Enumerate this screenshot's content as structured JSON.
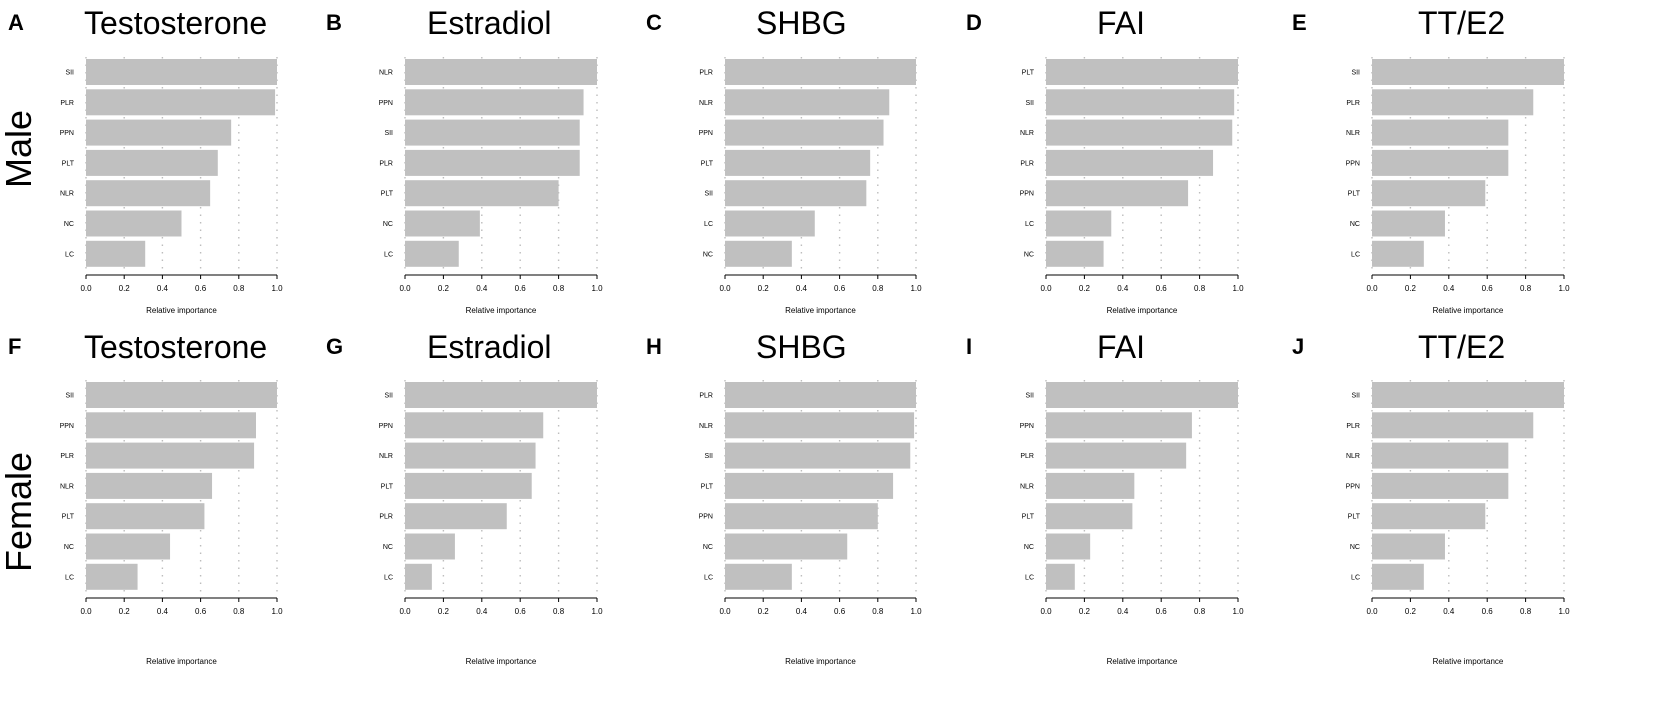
{
  "figure": {
    "row_labels": [
      "Male",
      "Female"
    ],
    "bar_color": "#c0c0c0",
    "grid_color": "#bdbdbd",
    "axis_color": "#000000"
  },
  "chart_data": [
    {
      "type": "bar",
      "orientation": "horizontal",
      "panel_letter": "A",
      "title": "Testosterone",
      "group": "Male",
      "categories": [
        "SII",
        "PLR",
        "PPN",
        "PLT",
        "NLR",
        "NC",
        "LC"
      ],
      "values": [
        1.0,
        0.99,
        0.76,
        0.69,
        0.65,
        0.5,
        0.31
      ],
      "xlabel": "Relative importance",
      "xlim": [
        0,
        1
      ],
      "xticks": [
        "0.0",
        "0.2",
        "0.4",
        "0.6",
        "0.8",
        "1.0"
      ],
      "grid": "vertical dotted"
    },
    {
      "type": "bar",
      "orientation": "horizontal",
      "panel_letter": "B",
      "title": "Estradiol",
      "group": "Male",
      "categories": [
        "NLR",
        "PPN",
        "SII",
        "PLR",
        "PLT",
        "NC",
        "LC"
      ],
      "values": [
        1.0,
        0.93,
        0.91,
        0.91,
        0.8,
        0.39,
        0.28
      ],
      "xlabel": "Relative importance",
      "xlim": [
        0,
        1
      ],
      "xticks": [
        "0.0",
        "0.2",
        "0.4",
        "0.6",
        "0.8",
        "1.0"
      ],
      "grid": "vertical dotted"
    },
    {
      "type": "bar",
      "orientation": "horizontal",
      "panel_letter": "C",
      "title": "SHBG",
      "group": "Male",
      "categories": [
        "PLR",
        "NLR",
        "PPN",
        "PLT",
        "SII",
        "LC",
        "NC"
      ],
      "values": [
        1.0,
        0.86,
        0.83,
        0.76,
        0.74,
        0.47,
        0.35
      ],
      "xlabel": "Relative importance",
      "xlim": [
        0,
        1
      ],
      "xticks": [
        "0.0",
        "0.2",
        "0.4",
        "0.6",
        "0.8",
        "1.0"
      ],
      "grid": "vertical dotted"
    },
    {
      "type": "bar",
      "orientation": "horizontal",
      "panel_letter": "D",
      "title": "FAI",
      "group": "Male",
      "categories": [
        "PLT",
        "SII",
        "NLR",
        "PLR",
        "PPN",
        "LC",
        "NC"
      ],
      "values": [
        1.0,
        0.98,
        0.97,
        0.87,
        0.74,
        0.34,
        0.3
      ],
      "xlabel": "Relative importance",
      "xlim": [
        0,
        1
      ],
      "xticks": [
        "0.0",
        "0.2",
        "0.4",
        "0.6",
        "0.8",
        "1.0"
      ],
      "grid": "vertical dotted"
    },
    {
      "type": "bar",
      "orientation": "horizontal",
      "panel_letter": "E",
      "title": "TT/E2",
      "group": "Male",
      "categories": [
        "SII",
        "PLR",
        "NLR",
        "PPN",
        "PLT",
        "NC",
        "LC"
      ],
      "values": [
        1.0,
        0.84,
        0.71,
        0.71,
        0.59,
        0.38,
        0.27
      ],
      "xlabel": "Relative importance",
      "xlim": [
        0,
        1
      ],
      "xticks": [
        "0.0",
        "0.2",
        "0.4",
        "0.6",
        "0.8",
        "1.0"
      ],
      "grid": "vertical dotted"
    },
    {
      "type": "bar",
      "orientation": "horizontal",
      "panel_letter": "F",
      "title": "Testosterone",
      "group": "Female",
      "categories": [
        "SII",
        "PPN",
        "PLR",
        "NLR",
        "PLT",
        "NC",
        "LC"
      ],
      "values": [
        1.0,
        0.89,
        0.88,
        0.66,
        0.62,
        0.44,
        0.27
      ],
      "xlabel": "Relative importance",
      "xlim": [
        0,
        1
      ],
      "xticks": [
        "0.0",
        "0.2",
        "0.4",
        "0.6",
        "0.8",
        "1.0"
      ],
      "grid": "vertical dotted"
    },
    {
      "type": "bar",
      "orientation": "horizontal",
      "panel_letter": "G",
      "title": "Estradiol",
      "group": "Female",
      "categories": [
        "SII",
        "PPN",
        "NLR",
        "PLT",
        "PLR",
        "NC",
        "LC"
      ],
      "values": [
        1.0,
        0.72,
        0.68,
        0.66,
        0.53,
        0.26,
        0.14
      ],
      "xlabel": "Relative importance",
      "xlim": [
        0,
        1
      ],
      "xticks": [
        "0.0",
        "0.2",
        "0.4",
        "0.6",
        "0.8",
        "1.0"
      ],
      "grid": "vertical dotted"
    },
    {
      "type": "bar",
      "orientation": "horizontal",
      "panel_letter": "H",
      "title": "SHBG",
      "group": "Female",
      "categories": [
        "PLR",
        "NLR",
        "SII",
        "PLT",
        "PPN",
        "NC",
        "LC"
      ],
      "values": [
        1.0,
        0.99,
        0.97,
        0.88,
        0.8,
        0.64,
        0.35
      ],
      "xlabel": "Relative importance",
      "xlim": [
        0,
        1
      ],
      "xticks": [
        "0.0",
        "0.2",
        "0.4",
        "0.6",
        "0.8",
        "1.0"
      ],
      "grid": "vertical dotted"
    },
    {
      "type": "bar",
      "orientation": "horizontal",
      "panel_letter": "I",
      "title": "FAI",
      "group": "Female",
      "categories": [
        "SII",
        "PPN",
        "PLR",
        "NLR",
        "PLT",
        "NC",
        "LC"
      ],
      "values": [
        1.0,
        0.76,
        0.73,
        0.46,
        0.45,
        0.23,
        0.15
      ],
      "xlabel": "Relative importance",
      "xlim": [
        0,
        1
      ],
      "xticks": [
        "0.0",
        "0.2",
        "0.4",
        "0.6",
        "0.8",
        "1.0"
      ],
      "grid": "vertical dotted"
    },
    {
      "type": "bar",
      "orientation": "horizontal",
      "panel_letter": "J",
      "title": "TT/E2",
      "group": "Female",
      "categories": [
        "SII",
        "PLR",
        "NLR",
        "PPN",
        "PLT",
        "NC",
        "LC"
      ],
      "values": [
        1.0,
        0.84,
        0.71,
        0.71,
        0.59,
        0.38,
        0.27
      ],
      "xlabel": "Relative importance",
      "xlim": [
        0,
        1
      ],
      "xticks": [
        "0.0",
        "0.2",
        "0.4",
        "0.6",
        "0.8",
        "1.0"
      ],
      "grid": "vertical dotted"
    }
  ]
}
